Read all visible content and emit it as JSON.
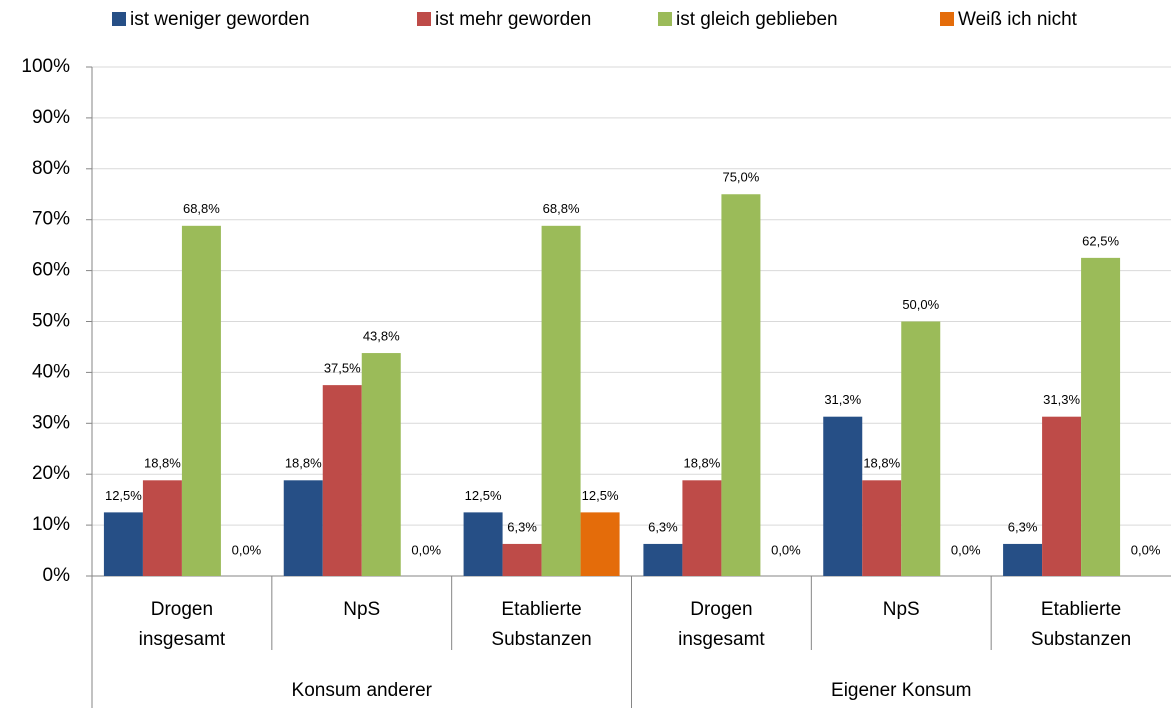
{
  "chart_data": {
    "type": "bar",
    "groups": [
      {
        "name": "Konsum anderer",
        "categories": [
          "Drogen insgesamt",
          "NpS",
          "Etablierte Substanzen"
        ]
      },
      {
        "name": "Eigener Konsum",
        "categories": [
          "Drogen insgesamt",
          "NpS",
          "Etablierte Substanzen"
        ]
      }
    ],
    "series": [
      {
        "name": "ist weniger geworden",
        "color": "#264f86",
        "values": [
          12.5,
          18.8,
          12.5,
          6.3,
          31.3,
          6.3
        ],
        "value_labels": [
          "12,5%",
          "18,8%",
          "12,5%",
          "6,3%",
          "31,3%",
          "6,3%"
        ]
      },
      {
        "name": "ist mehr geworden",
        "color": "#be4b48",
        "values": [
          18.8,
          37.5,
          6.3,
          18.8,
          18.8,
          31.3
        ],
        "value_labels": [
          "18,8%",
          "37,5%",
          "6,3%",
          "18,8%",
          "18,8%",
          "31,3%"
        ]
      },
      {
        "name": "ist gleich geblieben",
        "color": "#9bbb59",
        "values": [
          68.8,
          43.8,
          68.8,
          75.0,
          50.0,
          62.5
        ],
        "value_labels": [
          "68,8%",
          "43,8%",
          "68,8%",
          "75,0%",
          "50,0%",
          "62,5%"
        ]
      },
      {
        "name": "Weiß ich nicht",
        "color": "#e46c0a",
        "values": [
          0,
          0,
          12.5,
          0,
          0,
          0
        ],
        "value_labels": [
          "0,0%",
          "0,0%",
          "12,5%",
          "0,0%",
          "0,0%",
          "0,0%"
        ]
      }
    ],
    "ylim": [
      0,
      100
    ],
    "yticks": [
      {
        "value": 0,
        "label": "0%"
      },
      {
        "value": 10,
        "label": "10%"
      },
      {
        "value": 20,
        "label": "20%"
      },
      {
        "value": 30,
        "label": "30%"
      },
      {
        "value": 40,
        "label": "40%"
      },
      {
        "value": 50,
        "label": "50%"
      },
      {
        "value": 60,
        "label": "60%"
      },
      {
        "value": 70,
        "label": "70%"
      },
      {
        "value": 80,
        "label": "80%"
      },
      {
        "value": 90,
        "label": "90%"
      },
      {
        "value": 100,
        "label": "100%"
      }
    ],
    "grid": true,
    "legend": "top"
  }
}
